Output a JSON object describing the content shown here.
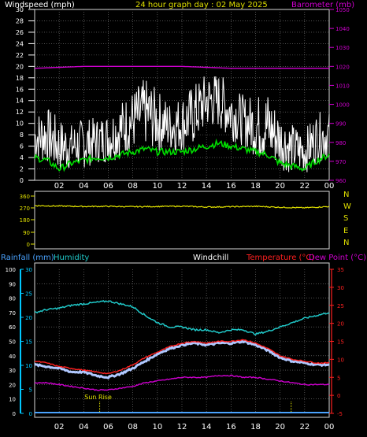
{
  "colors": {
    "background": "#000000",
    "frame": "#d8d8d8",
    "grid": "#808080",
    "windspeed": "#ffffff",
    "windgust_shadow": "#00dd00",
    "barometer": "#d000d0",
    "direction": "#e0e000",
    "rain_axis": "#00c8ff",
    "rain_line": "#4aa3ff",
    "humidity": "#20c8c8",
    "windchill": "#b0c8ff",
    "temperature": "#ff2020",
    "dewpoint": "#d000d0",
    "sun": "#e0e000"
  },
  "header": {
    "windspeed_label": "Windspeed (mph)",
    "title": "24 hour graph day : 02 May 2025",
    "barometer_label": "Barometer (mb)"
  },
  "panel3_header": {
    "rainfall_label": "Rainfall (mm)",
    "humidity_label": "Humidity",
    "windchill_label": "Windchill",
    "temperature_label": "Temperature (°C)",
    "dewpoint_label": "Dew Point (°C)"
  },
  "x_ticks": [
    "02",
    "04",
    "06",
    "08",
    "10",
    "12",
    "14",
    "16",
    "18",
    "20",
    "22",
    "00"
  ],
  "sun_rise_label": "Sun Rise",
  "direction_axis": {
    "left_ticks": [
      "360",
      "270",
      "180",
      "90",
      "0"
    ],
    "right_letters": [
      "N",
      "W",
      "S",
      "E",
      "N"
    ]
  },
  "chart_data": [
    {
      "type": "line",
      "title": "24 hour graph day : 02 May 2025",
      "x_unit": "hour of day",
      "xlim": [
        0,
        24
      ],
      "y_left": {
        "label": "Windspeed (mph)",
        "lim": [
          0,
          30
        ],
        "ticks": [
          0,
          2,
          4,
          6,
          8,
          10,
          12,
          14,
          16,
          18,
          20,
          22,
          24,
          26,
          28,
          30
        ]
      },
      "y_right": {
        "label": "Barometer (mb)",
        "lim": [
          960,
          1050
        ],
        "ticks": [
          960,
          970,
          980,
          990,
          1000,
          1010,
          1020,
          1030,
          1040,
          1050
        ]
      },
      "grid": true,
      "series": [
        {
          "name": "Windspeed (mph)",
          "axis": "left",
          "x": [
            0,
            1,
            2,
            3,
            4,
            5,
            6,
            7,
            8,
            9,
            10,
            11,
            12,
            13,
            14,
            15,
            16,
            17,
            18,
            19,
            20,
            21,
            22,
            23,
            24
          ],
          "y": [
            7,
            8,
            6,
            5,
            6,
            6,
            7,
            8,
            9,
            11,
            10,
            9,
            9,
            10,
            13,
            13,
            12,
            11,
            10,
            9,
            6,
            5,
            5,
            7,
            8
          ],
          "min": [
            3,
            3,
            1,
            2,
            2,
            3,
            3,
            4,
            5,
            6,
            5,
            5,
            5,
            6,
            9,
            9,
            7,
            6,
            4,
            3,
            2,
            1,
            1,
            3,
            4
          ],
          "max": [
            12,
            13,
            11,
            10,
            11,
            11,
            12,
            14,
            16,
            18,
            16,
            14,
            15,
            17,
            19,
            19,
            17,
            15,
            15,
            16,
            12,
            10,
            9,
            12,
            12
          ]
        },
        {
          "name": "Wind (green)",
          "axis": "left",
          "x": [
            0,
            1,
            2,
            3,
            4,
            5,
            6,
            7,
            8,
            9,
            10,
            11,
            12,
            13,
            14,
            15,
            16,
            17,
            18,
            19,
            20,
            21,
            22,
            23,
            24
          ],
          "y": [
            4,
            3.5,
            2,
            3,
            3.5,
            4,
            4,
            4.5,
            5,
            5.5,
            5,
            5,
            5,
            5.5,
            6,
            6.5,
            6,
            5.5,
            5,
            4.5,
            3,
            2.5,
            2,
            3.5,
            4.5
          ]
        },
        {
          "name": "Barometer (mb)",
          "axis": "right",
          "x": [
            0,
            4,
            8,
            12,
            16,
            20,
            24
          ],
          "y": [
            1019,
            1020,
            1020,
            1020,
            1019,
            1019,
            1019
          ]
        }
      ]
    },
    {
      "type": "line",
      "x_unit": "hour of day",
      "xlim": [
        0,
        24
      ],
      "y": {
        "lim": [
          0,
          360
        ],
        "ticks": [
          0,
          90,
          180,
          270,
          360
        ]
      },
      "right_labels": [
        "N",
        "W",
        "S",
        "E",
        "N"
      ],
      "series": [
        {
          "name": "Wind direction",
          "x": [
            0,
            2,
            4,
            6,
            8,
            10,
            12,
            14,
            16,
            18,
            20,
            22,
            24
          ],
          "y": [
            288,
            285,
            282,
            283,
            280,
            282,
            284,
            278,
            280,
            283,
            276,
            272,
            282
          ]
        }
      ]
    },
    {
      "type": "line",
      "x_unit": "hour of day",
      "xlim": [
        0,
        24
      ],
      "y_rain": {
        "label": "Rainfall (mm)",
        "lim": [
          0,
          30
        ],
        "ticks": [
          0,
          5,
          10,
          15,
          20,
          25,
          30
        ]
      },
      "y_humidity": {
        "label": "Humidity",
        "lim": [
          0,
          100
        ],
        "ticks": [
          0,
          10,
          20,
          30,
          40,
          50,
          60,
          70,
          80,
          90,
          100
        ]
      },
      "y_temp": {
        "label": "Temperature (°C)",
        "lim": [
          -5,
          35
        ],
        "ticks": [
          -5,
          0,
          5,
          10,
          15,
          20,
          25,
          30,
          35
        ]
      },
      "grid": true,
      "series": [
        {
          "name": "Humidity",
          "axis": "humidity",
          "x": [
            0,
            1,
            2,
            3,
            4,
            5,
            6,
            7,
            8,
            9,
            10,
            11,
            12,
            13,
            14,
            15,
            16,
            17,
            18,
            19,
            20,
            21,
            22,
            23,
            24
          ],
          "y": [
            70,
            72,
            73,
            75,
            76,
            77,
            78,
            76,
            74,
            68,
            63,
            60,
            60,
            58,
            58,
            56,
            58,
            58,
            55,
            57,
            60,
            63,
            66,
            68,
            70
          ]
        },
        {
          "name": "Temperature (°C)",
          "axis": "temp",
          "x": [
            0,
            1,
            2,
            3,
            4,
            5,
            6,
            7,
            8,
            9,
            10,
            11,
            12,
            13,
            14,
            15,
            16,
            17,
            18,
            19,
            20,
            21,
            22,
            23,
            24
          ],
          "y": [
            9.5,
            9,
            8,
            7.5,
            7,
            6.5,
            6,
            7,
            8.5,
            10.5,
            12,
            13.5,
            14.5,
            15,
            14.5,
            15,
            15,
            15.5,
            14.5,
            13,
            11,
            10,
            9.5,
            9,
            9
          ]
        },
        {
          "name": "Windchill",
          "axis": "temp",
          "x": [
            0,
            1,
            2,
            3,
            4,
            5,
            6,
            7,
            8,
            9,
            10,
            11,
            12,
            13,
            14,
            15,
            16,
            17,
            18,
            19,
            20,
            21,
            22,
            23,
            24
          ],
          "y": [
            8.5,
            8,
            7.5,
            6.5,
            6.5,
            5.5,
            5,
            6,
            7.5,
            9.5,
            11.5,
            13,
            14,
            14.5,
            14,
            14.5,
            14.5,
            15,
            14,
            12.5,
            10.5,
            9.5,
            9,
            8.5,
            8.5
          ]
        },
        {
          "name": "Dew Point (°C)",
          "axis": "temp",
          "x": [
            0,
            1,
            2,
            3,
            4,
            5,
            6,
            7,
            8,
            9,
            10,
            11,
            12,
            13,
            14,
            15,
            16,
            17,
            18,
            19,
            20,
            21,
            22,
            23,
            24
          ],
          "y": [
            3.5,
            3.5,
            3,
            2.5,
            2,
            1.5,
            1.5,
            2,
            2.5,
            3.5,
            4,
            4.5,
            5,
            5,
            5,
            5.5,
            5.5,
            5,
            5,
            4.5,
            4,
            3.5,
            3,
            3,
            3
          ]
        },
        {
          "name": "Rainfall (mm)",
          "axis": "rain",
          "x": [
            0,
            24
          ],
          "y": [
            0,
            0
          ]
        }
      ],
      "annotations": [
        {
          "text": "Sun Rise",
          "x": 5.3
        },
        {
          "text": "",
          "x": 20.9
        }
      ]
    }
  ]
}
